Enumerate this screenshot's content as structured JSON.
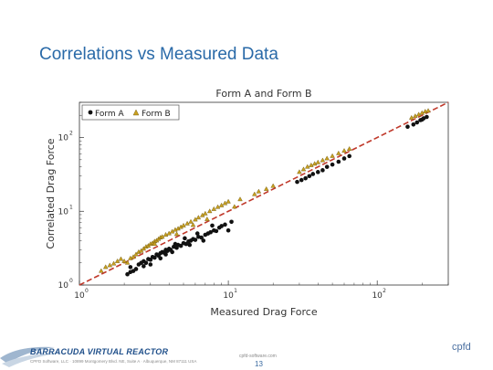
{
  "slide": {
    "title": "Correlations vs Measured Data",
    "brand": "BARRACUDA VIRTUAL REACTOR",
    "company_line": "CPFD Software, LLC  ·  10899 Montgomery Blvd. NE, Suite A  ·  Albuquerque, NM 87111 USA",
    "website": "cpfd-software.com",
    "page_number": "13",
    "corner_logo": "cpfd"
  },
  "colors": {
    "title": "#2a6aa8",
    "form_a": "#111111",
    "form_b": "#c8a020",
    "fit_line": "#c0392b"
  },
  "chart_data": {
    "type": "scatter",
    "title": "Form A and Form B",
    "xlabel": "Measured Drag Force",
    "ylabel": "Correlated Drag Force",
    "xscale": "log",
    "yscale": "log",
    "xlim": [
      1,
      300
    ],
    "ylim": [
      1,
      300
    ],
    "x_ticks": [
      "10^0",
      "10^1",
      "10^2"
    ],
    "y_ticks": [
      "10^0",
      "10^1",
      "10^2"
    ],
    "legend": "top-left",
    "grid": false,
    "reference_line": "y = x (dashed)",
    "series": [
      {
        "name": "Form A",
        "marker": "circle",
        "points": [
          [
            2.1,
            1.4
          ],
          [
            2.2,
            1.5
          ],
          [
            2.3,
            1.55
          ],
          [
            2.2,
            1.75
          ],
          [
            2.4,
            1.65
          ],
          [
            2.5,
            1.9
          ],
          [
            2.6,
            2.0
          ],
          [
            2.7,
            2.1
          ],
          [
            2.8,
            2.0
          ],
          [
            2.9,
            2.25
          ],
          [
            3.0,
            2.2
          ],
          [
            3.1,
            2.4
          ],
          [
            3.2,
            2.35
          ],
          [
            3.3,
            2.6
          ],
          [
            3.4,
            2.5
          ],
          [
            3.5,
            2.7
          ],
          [
            3.6,
            2.8
          ],
          [
            3.7,
            2.75
          ],
          [
            3.8,
            3.0
          ],
          [
            3.9,
            2.9
          ],
          [
            4.0,
            3.1
          ],
          [
            4.1,
            3.0
          ],
          [
            4.3,
            3.3
          ],
          [
            4.5,
            3.2
          ],
          [
            4.6,
            3.5
          ],
          [
            4.8,
            3.4
          ],
          [
            5.0,
            3.7
          ],
          [
            5.2,
            3.6
          ],
          [
            5.4,
            3.9
          ],
          [
            5.6,
            4.0
          ],
          [
            5.8,
            4.2
          ],
          [
            6.0,
            4.1
          ],
          [
            6.3,
            4.5
          ],
          [
            6.6,
            4.4
          ],
          [
            7.0,
            4.8
          ],
          [
            7.3,
            5.0
          ],
          [
            7.6,
            5.2
          ],
          [
            8.0,
            5.5
          ],
          [
            8.3,
            5.4
          ],
          [
            8.7,
            6.0
          ],
          [
            9.0,
            6.3
          ],
          [
            9.5,
            6.6
          ],
          [
            10.0,
            5.5
          ],
          [
            10.5,
            7.2
          ],
          [
            3.0,
            1.9
          ],
          [
            3.5,
            2.3
          ],
          [
            4.2,
            2.8
          ],
          [
            5.5,
            3.5
          ],
          [
            6.8,
            4.0
          ],
          [
            2.7,
            1.8
          ],
          [
            3.8,
            2.6
          ],
          [
            4.4,
            3.6
          ],
          [
            5.1,
            4.3
          ],
          [
            6.2,
            5.0
          ],
          [
            7.8,
            6.4
          ],
          [
            29,
            25
          ],
          [
            31,
            26.5
          ],
          [
            33,
            28
          ],
          [
            35,
            30
          ],
          [
            37,
            32
          ],
          [
            40,
            34
          ],
          [
            43,
            36
          ],
          [
            46,
            40
          ],
          [
            50,
            43
          ],
          [
            55,
            47
          ],
          [
            60,
            52
          ],
          [
            65,
            56
          ],
          [
            175,
            150
          ],
          [
            185,
            160
          ],
          [
            195,
            172
          ],
          [
            205,
            182
          ],
          [
            215,
            190
          ],
          [
            160,
            140
          ],
          [
            200,
            175
          ]
        ]
      },
      {
        "name": "Form B",
        "marker": "triangle",
        "points": [
          [
            2.1,
            2.0
          ],
          [
            2.2,
            2.3
          ],
          [
            2.3,
            2.4
          ],
          [
            2.4,
            2.6
          ],
          [
            2.5,
            2.8
          ],
          [
            2.6,
            2.9
          ],
          [
            2.7,
            3.1
          ],
          [
            2.8,
            3.3
          ],
          [
            2.9,
            3.4
          ],
          [
            3.0,
            3.6
          ],
          [
            3.1,
            3.7
          ],
          [
            3.2,
            3.9
          ],
          [
            3.3,
            4.0
          ],
          [
            3.4,
            4.2
          ],
          [
            3.5,
            4.4
          ],
          [
            3.6,
            4.5
          ],
          [
            3.8,
            4.8
          ],
          [
            4.0,
            5.0
          ],
          [
            4.2,
            5.3
          ],
          [
            4.4,
            5.6
          ],
          [
            4.6,
            5.8
          ],
          [
            4.8,
            6.1
          ],
          [
            5.0,
            6.4
          ],
          [
            5.3,
            6.8
          ],
          [
            5.6,
            7.2
          ],
          [
            6.0,
            7.7
          ],
          [
            6.3,
            8.2
          ],
          [
            6.7,
            8.8
          ],
          [
            7.0,
            9.3
          ],
          [
            7.5,
            10.0
          ],
          [
            8.0,
            10.7
          ],
          [
            8.5,
            11.4
          ],
          [
            9.0,
            12.0
          ],
          [
            9.5,
            12.8
          ],
          [
            10.0,
            13.5
          ],
          [
            1.4,
            1.55
          ],
          [
            1.5,
            1.75
          ],
          [
            1.6,
            1.85
          ],
          [
            1.7,
            1.95
          ],
          [
            1.8,
            2.1
          ],
          [
            1.9,
            2.25
          ],
          [
            2.0,
            2.1
          ],
          [
            3.2,
            3.6
          ],
          [
            4.5,
            4.9
          ],
          [
            5.8,
            6.5
          ],
          [
            7.2,
            7.8
          ],
          [
            11.0,
            11.5
          ],
          [
            12.0,
            14.5
          ],
          [
            15.0,
            17.0
          ],
          [
            16.0,
            18.5
          ],
          [
            18.0,
            20.0
          ],
          [
            20.0,
            22.0
          ],
          [
            30,
            34
          ],
          [
            32,
            37
          ],
          [
            34,
            40
          ],
          [
            36,
            42
          ],
          [
            38,
            44
          ],
          [
            40,
            46
          ],
          [
            43,
            49
          ],
          [
            46,
            52
          ],
          [
            50,
            56
          ],
          [
            55,
            61
          ],
          [
            60,
            66
          ],
          [
            65,
            70
          ],
          [
            180,
            195
          ],
          [
            190,
            205
          ],
          [
            200,
            215
          ],
          [
            210,
            225
          ],
          [
            220,
            230
          ],
          [
            170,
            185
          ]
        ]
      }
    ]
  }
}
